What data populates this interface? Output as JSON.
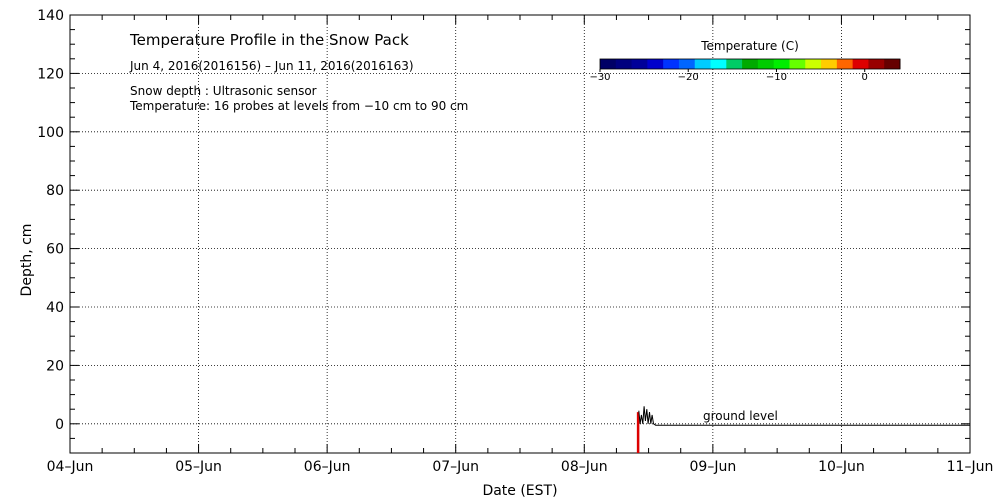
{
  "chart_data": {
    "type": "line",
    "title": "Temperature Profile in the Snow Pack",
    "subtitle": "Jun  4, 2016(2016156) – Jun 11, 2016(2016163)",
    "notes": [
      "Snow depth : Ultrasonic sensor",
      "Temperature: 16 probes at levels from −10 cm to 90 cm"
    ],
    "xlabel": "Date (EST)",
    "ylabel": "Depth, cm",
    "x_ticks": [
      "04–Jun",
      "05–Jun",
      "06–Jun",
      "07–Jun",
      "08–Jun",
      "09–Jun",
      "10–Jun",
      "11–Jun"
    ],
    "xlim": [
      "2016-06-04",
      "2016-06-11"
    ],
    "ylim": [
      -10,
      140
    ],
    "y_ticks": [
      0,
      20,
      40,
      60,
      80,
      100,
      120,
      140
    ],
    "grid": true,
    "annotation": "ground level",
    "colorbar": {
      "title": "Temperature (C)",
      "range": [
        -30,
        4
      ],
      "ticks": [
        -30,
        -20,
        -10,
        0
      ],
      "tick_labels": [
        "−30",
        "−20",
        "−10",
        "0"
      ],
      "colors": [
        "#000066",
        "#00007f",
        "#000099",
        "#0000cc",
        "#0033ff",
        "#0066ff",
        "#00ccff",
        "#00ffff",
        "#00cc66",
        "#00aa00",
        "#00cc00",
        "#00ee00",
        "#66ff00",
        "#ccff00",
        "#ffcc00",
        "#ff6600",
        "#dd0000",
        "#990000",
        "#660000"
      ]
    },
    "series": [
      {
        "color": "#000000",
        "points": [
          [
            "2016-06-08T10:10",
            4.5
          ],
          [
            "2016-06-08T10:25",
            0
          ],
          [
            "2016-06-08T10:40",
            3
          ],
          [
            "2016-06-08T10:55",
            0
          ],
          [
            "2016-06-08T11:10",
            6
          ],
          [
            "2016-06-08T11:25",
            1
          ],
          [
            "2016-06-08T11:40",
            5
          ],
          [
            "2016-06-08T11:55",
            0
          ],
          [
            "2016-06-08T12:10",
            4
          ],
          [
            "2016-06-08T12:25",
            0
          ],
          [
            "2016-06-08T12:40",
            3
          ],
          [
            "2016-06-08T12:55",
            0
          ],
          [
            "2016-06-08T13:20",
            -0.5
          ],
          [
            "2016-06-11T00:00",
            -0.5
          ]
        ]
      }
    ],
    "temperature_bars": [
      {
        "x": "2016-06-08T10:00",
        "from": -10,
        "to": 4,
        "color": "#dd0000"
      }
    ]
  }
}
